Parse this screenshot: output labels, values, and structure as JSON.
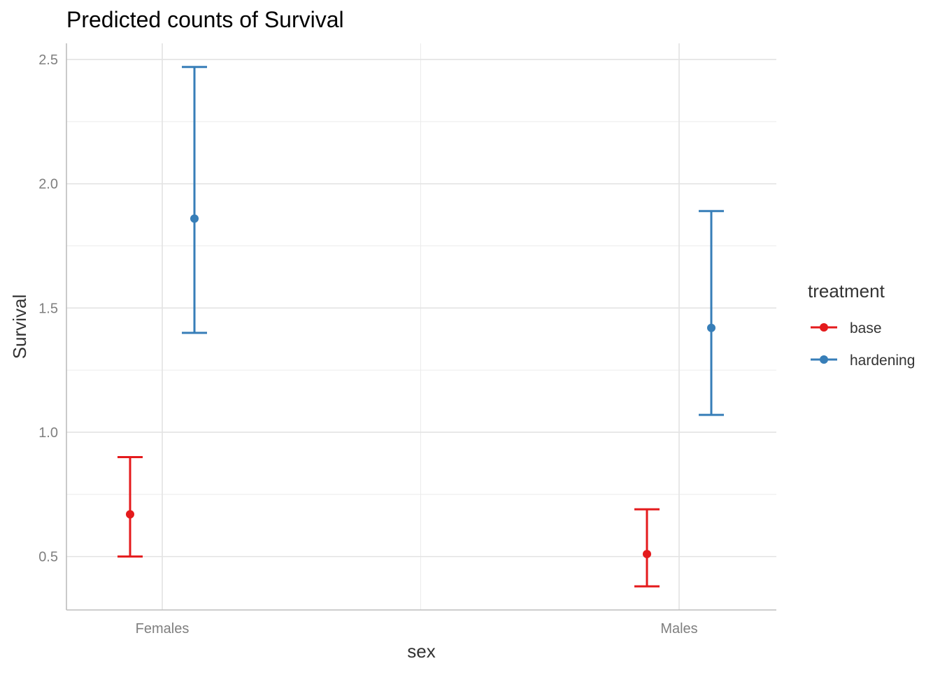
{
  "chart_data": {
    "type": "scatter",
    "title": "Predicted counts of Survival",
    "xlabel": "sex",
    "ylabel": "Survival",
    "categories": [
      "Females",
      "Males"
    ],
    "yticks": [
      "0.5",
      "1.0",
      "1.5",
      "2.0",
      "2.5"
    ],
    "ylim": [
      0.285,
      2.565
    ],
    "grid": true,
    "legend": {
      "title": "treatment",
      "position": "right"
    },
    "series": [
      {
        "name": "base",
        "color": "#E41A1C",
        "values": [
          0.67,
          0.51
        ],
        "lower": [
          0.5,
          0.38
        ],
        "upper": [
          0.9,
          0.69
        ]
      },
      {
        "name": "hardening",
        "color": "#377EB8",
        "values": [
          1.86,
          1.42
        ],
        "lower": [
          1.4,
          1.07
        ],
        "upper": [
          2.47,
          1.89
        ]
      }
    ]
  }
}
